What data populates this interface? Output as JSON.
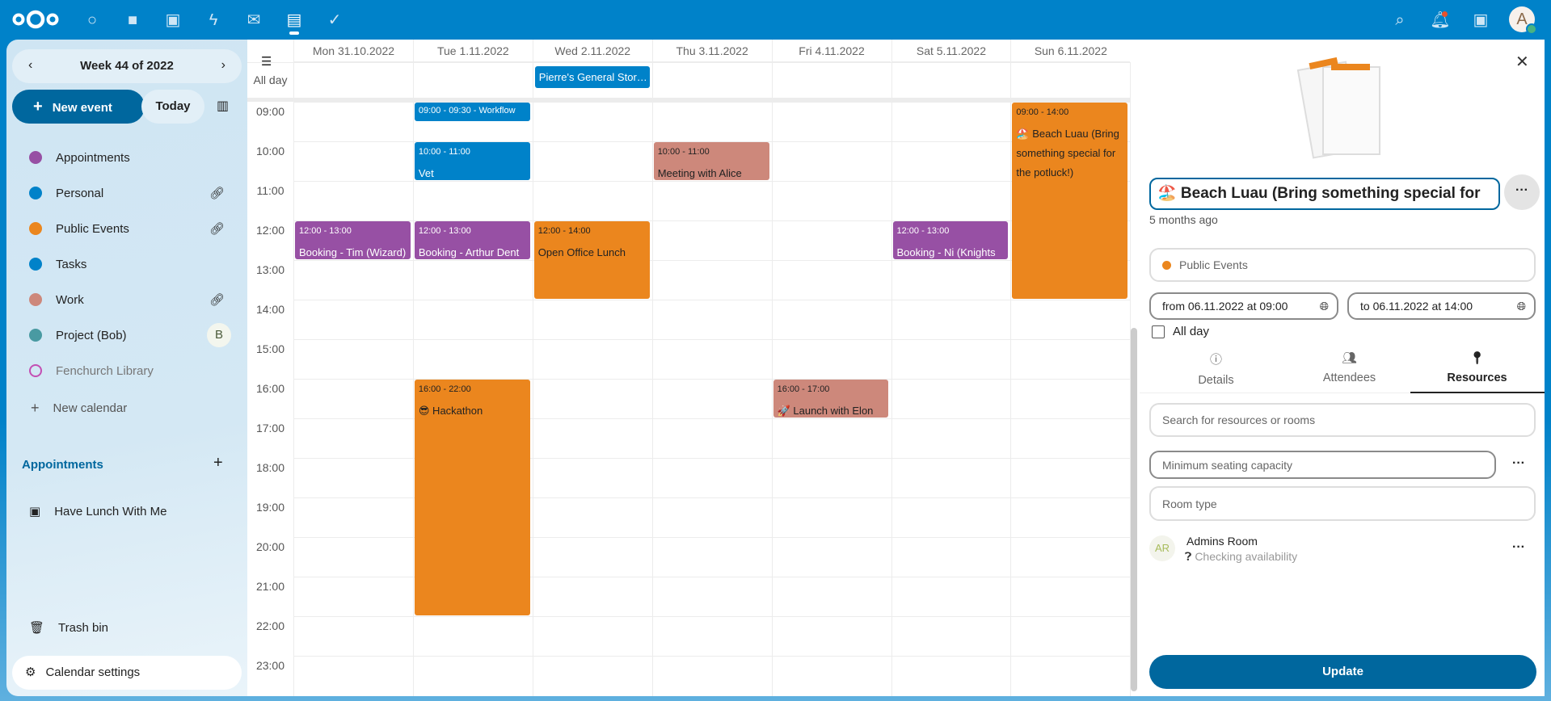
{
  "topbar": {
    "apps": [
      "dashboard-icon",
      "files-icon",
      "photos-icon",
      "activity-icon",
      "mail-icon",
      "calendar-icon",
      "tasks-icon"
    ],
    "avatar_letter": "A",
    "colors": {
      "brand": "#0082c9"
    }
  },
  "sidebar": {
    "week_label": "Week 44 of 2022",
    "new_event": "New event",
    "today": "Today",
    "calendars": [
      {
        "label": "Appointments",
        "color": "#9750a4",
        "shared": false
      },
      {
        "label": "Personal",
        "color": "#0082c9",
        "shared": true
      },
      {
        "label": "Public Events",
        "color": "#eb861e",
        "shared": true
      },
      {
        "label": "Tasks",
        "color": "#0082c9",
        "shared": false
      },
      {
        "label": "Work",
        "color": "#cd887b",
        "shared": true
      },
      {
        "label": "Project (Bob)",
        "color": "#499aa2",
        "owner_initial": "B"
      },
      {
        "label": "Fenchurch Library",
        "color": "#c34fb3",
        "disabled": true
      }
    ],
    "new_calendar": "New calendar",
    "appointments_header": "Appointments",
    "appointment_item": "Have Lunch With Me",
    "trash": "Trash bin",
    "settings": "Calendar settings"
  },
  "calendar": {
    "days": [
      "Mon 31.10.2022",
      "Tue 1.11.2022",
      "Wed 2.11.2022",
      "Thu 3.11.2022",
      "Fri 4.11.2022",
      "Sat 5.11.2022",
      "Sun 6.11.2022"
    ],
    "allday_label": "All day",
    "allday_events": [
      {
        "day": 2,
        "title": "Pierre's General Stor…",
        "color": "#0082c9"
      }
    ],
    "hours": [
      "09:00",
      "10:00",
      "11:00",
      "12:00",
      "13:00",
      "14:00",
      "15:00",
      "16:00",
      "17:00",
      "18:00",
      "19:00",
      "20:00",
      "21:00",
      "22:00",
      "23:00"
    ],
    "events": [
      {
        "day": 1,
        "start": 9,
        "end": 9.5,
        "time": "09:00 - 09:30 - Workflow",
        "title": "",
        "color": "#0082c9",
        "text": "#fff"
      },
      {
        "day": 1,
        "start": 10,
        "end": 11,
        "time": "10:00 - 11:00",
        "title": "Vet",
        "color": "#0082c9",
        "text": "#fff"
      },
      {
        "day": 3,
        "start": 10,
        "end": 11,
        "time": "10:00 - 11:00",
        "title": "Meeting with Alice",
        "color": "#cd887b",
        "text": "#222"
      },
      {
        "day": 0,
        "start": 12,
        "end": 13,
        "time": "12:00 - 13:00",
        "title": "Booking - Tim (Wizard)",
        "color": "#9750a4",
        "text": "#fff"
      },
      {
        "day": 1,
        "start": 12,
        "end": 13,
        "time": "12:00 - 13:00",
        "title": "Booking - Arthur Dent",
        "color": "#9750a4",
        "text": "#fff"
      },
      {
        "day": 2,
        "start": 12,
        "end": 14,
        "time": "12:00 - 14:00",
        "title": "Open Office Lunch",
        "color": "#eb861e",
        "text": "#222"
      },
      {
        "day": 5,
        "start": 12,
        "end": 13,
        "time": "12:00 - 13:00",
        "title": "Booking - Ni (Knights",
        "color": "#9750a4",
        "text": "#fff"
      },
      {
        "day": 6,
        "start": 9,
        "end": 14,
        "time": "09:00 - 14:00",
        "title": "🏖️ Beach Luau (Bring something special for the potluck!)",
        "color": "#eb861e",
        "text": "#222"
      },
      {
        "day": 1,
        "start": 16,
        "end": 22,
        "time": "16:00 - 22:00",
        "title": "😎 Hackathon",
        "color": "#eb861e",
        "text": "#222"
      },
      {
        "day": 4,
        "start": 16,
        "end": 17,
        "time": "16:00 - 17:00",
        "title": "🚀 Launch with Elon",
        "color": "#cd887b",
        "text": "#222"
      }
    ]
  },
  "panel": {
    "title": "🏖️ Beach Luau (Bring something special for",
    "modified": "5 months ago",
    "calendar": "Public Events",
    "calendar_color": "#eb861e",
    "from": "from 06.11.2022 at 09:00",
    "to": "to 06.11.2022 at 14:00",
    "allday": "All day",
    "tabs": [
      "Details",
      "Attendees",
      "Resources"
    ],
    "active_tab": "Resources",
    "search_placeholder": "Search for resources or rooms",
    "capacity_placeholder": "Minimum seating capacity",
    "roomtype_placeholder": "Room type",
    "resource": {
      "initials": "AR",
      "name": "Admins Room",
      "status": "Checking availability"
    },
    "update": "Update"
  }
}
